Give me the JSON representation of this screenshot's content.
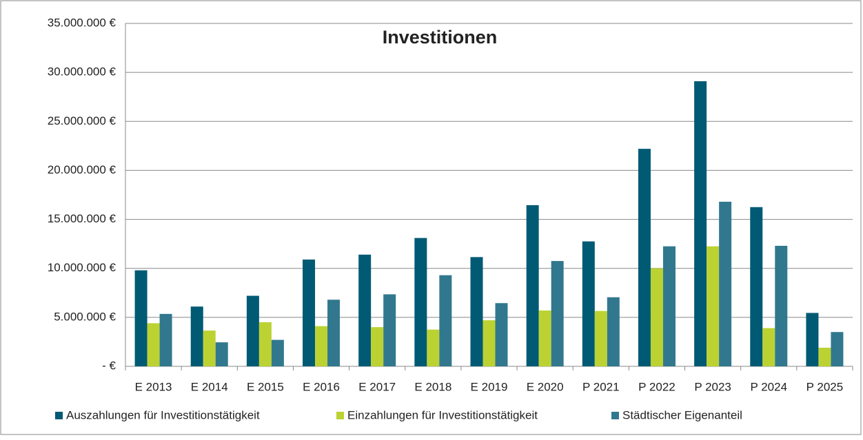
{
  "chart_data": {
    "type": "bar",
    "title": "Investitionen",
    "categories": [
      "E 2013",
      "E 2014",
      "E 2015",
      "E 2016",
      "E 2017",
      "E 2018",
      "E 2019",
      "E 2020",
      "P 2021",
      "P 2022",
      "P 2023",
      "P 2024",
      "P 2025"
    ],
    "series": [
      {
        "name": "Auszahlungen für Investitionstätigkeit",
        "color": "#005a74",
        "values": [
          9800000,
          6100000,
          7200000,
          10900000,
          11400000,
          13100000,
          11150000,
          16450000,
          12750000,
          22200000,
          29100000,
          16250000,
          5450000
        ]
      },
      {
        "name": "Einzahlungen für Investitionstätigkeit",
        "color": "#bcd232",
        "values": [
          4400000,
          3650000,
          4500000,
          4100000,
          4000000,
          3750000,
          4700000,
          5700000,
          5650000,
          10000000,
          12250000,
          3900000,
          1900000
        ]
      },
      {
        "name": "Städtischer Eigenanteil",
        "color": "#31788f",
        "values": [
          5350000,
          2450000,
          2700000,
          6800000,
          7350000,
          9300000,
          6450000,
          10750000,
          7050000,
          12250000,
          16800000,
          12300000,
          3500000
        ]
      }
    ],
    "ylim": [
      0,
      35000000
    ],
    "yticks": [
      {
        "value": 0,
        "label": "-   €"
      },
      {
        "value": 5000000,
        "label": "5.000.000 €"
      },
      {
        "value": 10000000,
        "label": "10.000.000 €"
      },
      {
        "value": 15000000,
        "label": "15.000.000 €"
      },
      {
        "value": 20000000,
        "label": "20.000.000 €"
      },
      {
        "value": 25000000,
        "label": "25.000.000 €"
      },
      {
        "value": 30000000,
        "label": "30.000.000 €"
      },
      {
        "value": 35000000,
        "label": "35.000.000 €"
      }
    ],
    "grid": true,
    "legend": "bottom"
  }
}
